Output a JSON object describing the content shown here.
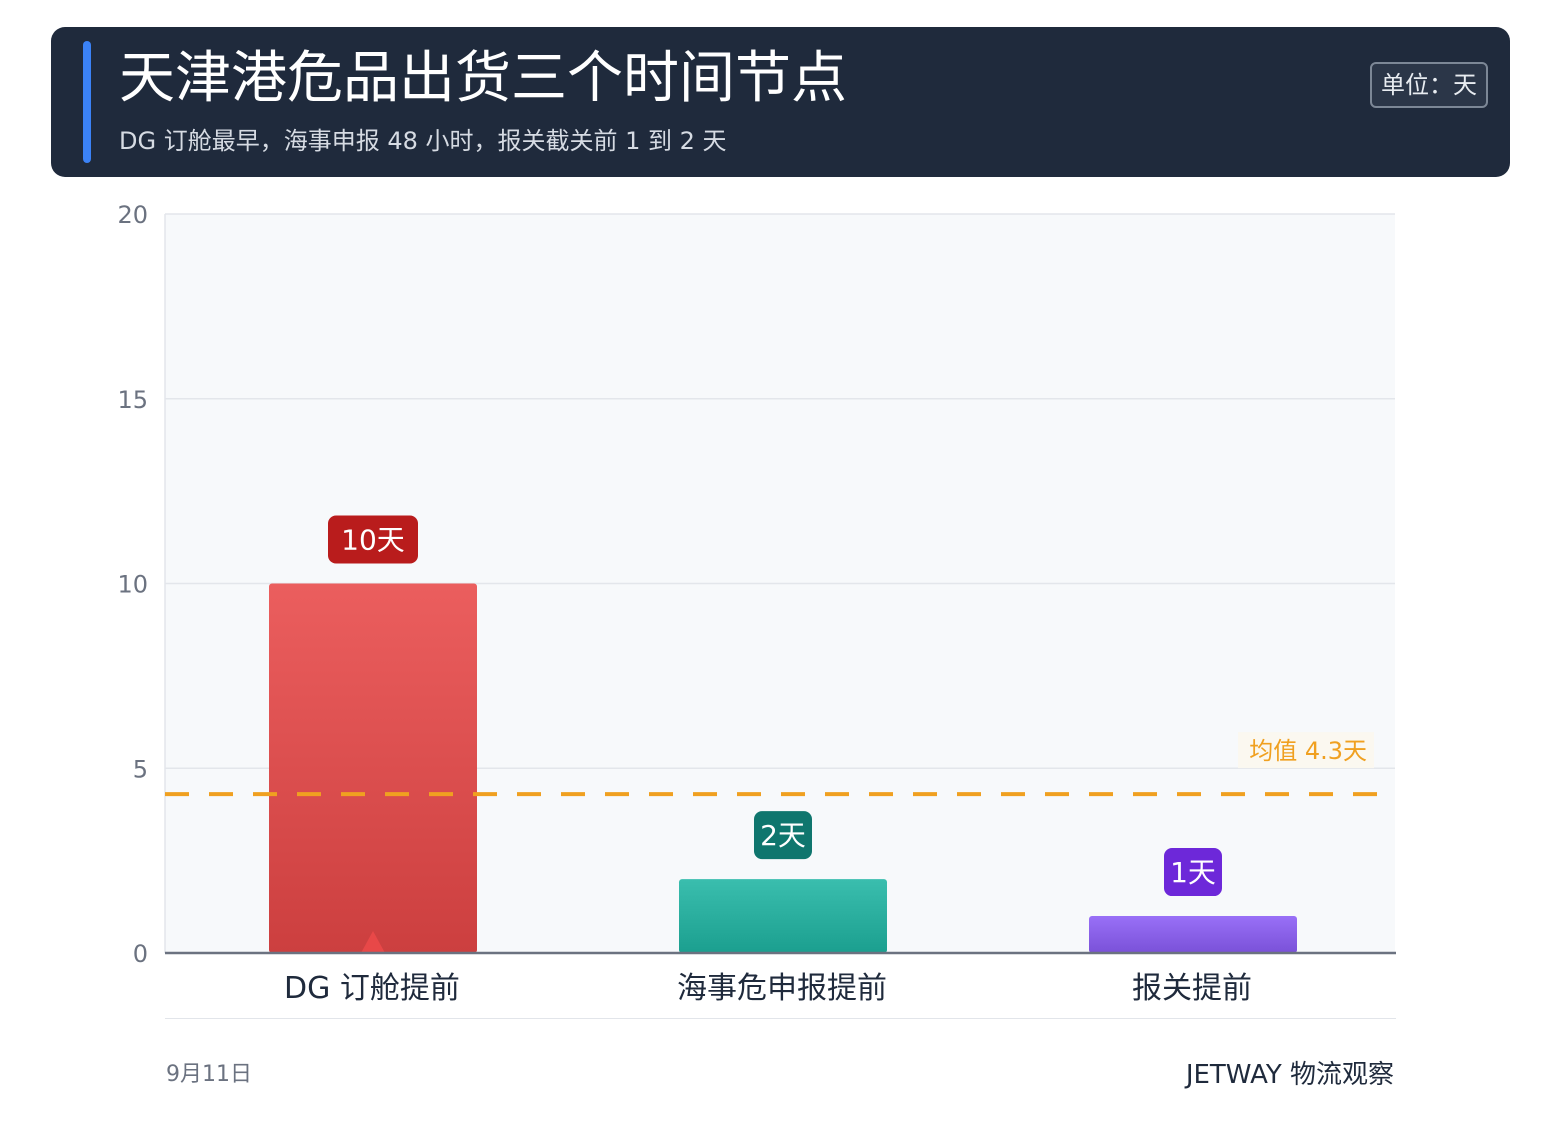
{
  "header": {
    "title": "天津港危品出货三个时间节点",
    "subtitle": "DG 订舱最早，海事申报 48 小时，报关截关前 1 到 2 天",
    "unit": "单位：天"
  },
  "chart_data": {
    "type": "bar",
    "categories": [
      "DG 订舱提前",
      "海事危申报提前",
      "报关提前"
    ],
    "values": [
      10,
      2,
      1
    ],
    "value_labels": [
      "10天",
      "2天",
      "1天"
    ],
    "colors": [
      "#e84848",
      "#1fb5a3",
      "#8b5cf6"
    ],
    "label_colors": [
      "#b91c1c",
      "#0f766e",
      "#6d28d9"
    ],
    "ylim": [
      0,
      20
    ],
    "yticks": [
      0,
      5,
      10,
      15,
      20
    ],
    "grid": true,
    "mean": {
      "value": 4.3,
      "label": "均值 4.3天",
      "color": "#f0a020"
    },
    "highlight_marker": {
      "category_index": 0,
      "icon": "triangle-up-icon",
      "color": "#e84848"
    }
  },
  "footer": {
    "date": "9月11日",
    "brand": "JETWAY 物流观察"
  }
}
